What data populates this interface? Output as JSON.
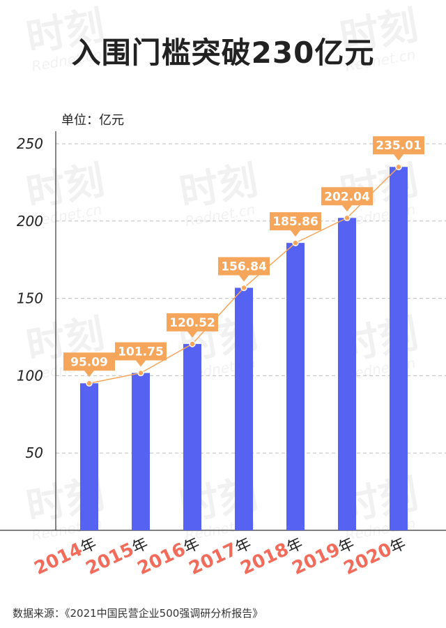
{
  "title": "入围门槛突破230亿元",
  "unit_label": "单位：亿元",
  "source_note": "数据来源：《2021中国民营企业500强调研分析报告》",
  "watermark": {
    "main": "时刻",
    "sub": "Rednet.cn"
  },
  "colors": {
    "bar": "#5562f2",
    "line": "#f5a65b",
    "label_bg": "#f5a65b",
    "label_text": "#ffffff",
    "year_number": "#f26b5b",
    "year_suffix": "#222222",
    "grid": "#bdbdbd",
    "axis": "#333333"
  },
  "chart_data": {
    "type": "bar",
    "categories": [
      "2014",
      "2015",
      "2016",
      "2017",
      "2018",
      "2019",
      "2020"
    ],
    "category_suffix": "年",
    "values": [
      95.09,
      101.75,
      120.52,
      156.84,
      185.86,
      202.04,
      235.01
    ],
    "value_labels": [
      "95.09",
      "101.75",
      "120.52",
      "156.84",
      "185.86",
      "202.04",
      "235.01"
    ],
    "overlay": "line",
    "ylim": [
      0,
      250
    ],
    "yticks": [
      50,
      100,
      150,
      200,
      250
    ],
    "ytick_labels": [
      "50",
      "100",
      "150",
      "200",
      "250"
    ],
    "grid": true,
    "title": "入围门槛突破230亿元",
    "ylabel": "单位：亿元",
    "xlabel": ""
  }
}
